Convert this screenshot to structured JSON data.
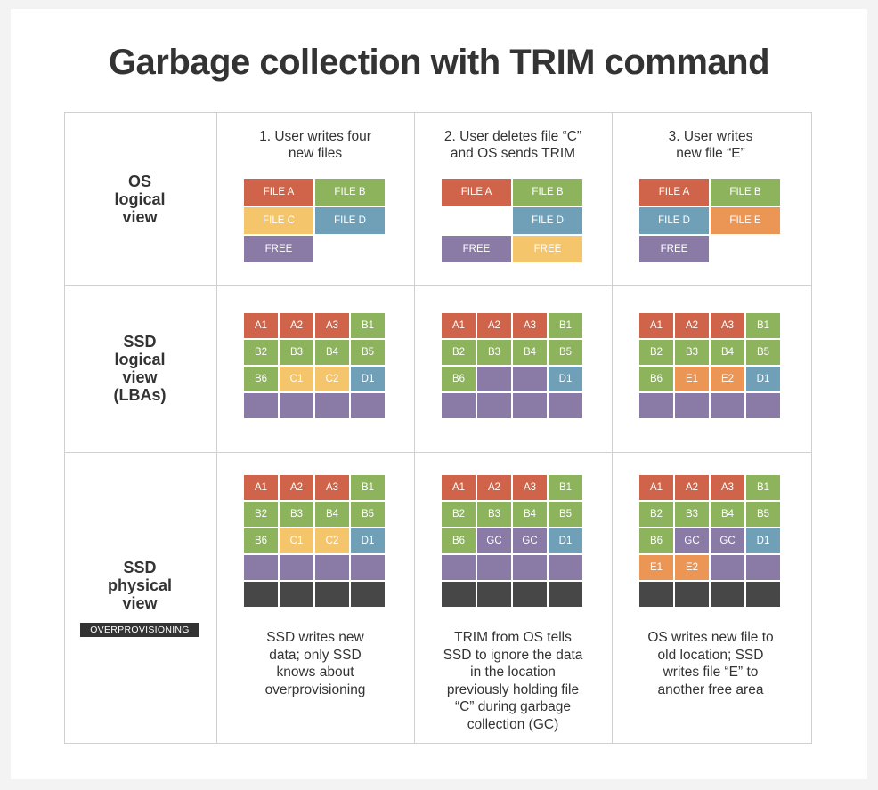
{
  "title": "Garbage collection with TRIM command",
  "colors": {
    "red": "#d0644a",
    "green": "#8db45d",
    "yellow": "#f4c56b",
    "blue": "#6fa0b8",
    "orange": "#ec9656",
    "purple": "#8a7aa6",
    "dark": "#474747"
  },
  "rows": [
    {
      "lines": [
        "OS",
        "logical",
        "view"
      ]
    },
    {
      "lines": [
        "SSD",
        "logical",
        "view",
        "(LBAs)"
      ]
    },
    {
      "lines": [
        "SSD",
        "physical",
        "view"
      ],
      "badge": "OVERPROVISIONING"
    }
  ],
  "columns": [
    {
      "lines": [
        "1. User writes four",
        "new files"
      ]
    },
    {
      "lines": [
        "2. User deletes file “C”",
        "and OS sends TRIM"
      ]
    },
    {
      "lines": [
        "3. User writes",
        "new file “E”"
      ]
    }
  ],
  "os_view": [
    [
      [
        {
          "t": "FILE A",
          "c": "red"
        },
        {
          "t": "FILE B",
          "c": "green"
        }
      ],
      [
        {
          "t": "FILE C",
          "c": "yellow"
        },
        {
          "t": "FILE D",
          "c": "blue"
        }
      ],
      [
        {
          "t": "FREE",
          "c": "purple"
        },
        null
      ]
    ],
    [
      [
        {
          "t": "FILE A",
          "c": "red"
        },
        {
          "t": "FILE B",
          "c": "green"
        }
      ],
      [
        null,
        {
          "t": "FILE D",
          "c": "blue"
        }
      ],
      [
        {
          "t": "FREE",
          "c": "purple"
        },
        {
          "t": "FREE",
          "c": "yellow"
        }
      ]
    ],
    [
      [
        {
          "t": "FILE A",
          "c": "red"
        },
        {
          "t": "FILE B",
          "c": "green"
        }
      ],
      [
        {
          "t": "FILE D",
          "c": "blue"
        },
        {
          "t": "FILE E",
          "c": "orange"
        }
      ],
      [
        {
          "t": "FREE",
          "c": "purple"
        },
        null
      ]
    ]
  ],
  "lba_view": [
    [
      [
        {
          "t": "A1",
          "c": "red"
        },
        {
          "t": "A2",
          "c": "red"
        },
        {
          "t": "A3",
          "c": "red"
        },
        {
          "t": "B1",
          "c": "green"
        }
      ],
      [
        {
          "t": "B2",
          "c": "green"
        },
        {
          "t": "B3",
          "c": "green"
        },
        {
          "t": "B4",
          "c": "green"
        },
        {
          "t": "B5",
          "c": "green"
        }
      ],
      [
        {
          "t": "B6",
          "c": "green"
        },
        {
          "t": "C1",
          "c": "yellow"
        },
        {
          "t": "C2",
          "c": "yellow"
        },
        {
          "t": "D1",
          "c": "blue"
        }
      ],
      [
        {
          "t": "",
          "c": "purple"
        },
        {
          "t": "",
          "c": "purple"
        },
        {
          "t": "",
          "c": "purple"
        },
        {
          "t": "",
          "c": "purple"
        }
      ]
    ],
    [
      [
        {
          "t": "A1",
          "c": "red"
        },
        {
          "t": "A2",
          "c": "red"
        },
        {
          "t": "A3",
          "c": "red"
        },
        {
          "t": "B1",
          "c": "green"
        }
      ],
      [
        {
          "t": "B2",
          "c": "green"
        },
        {
          "t": "B3",
          "c": "green"
        },
        {
          "t": "B4",
          "c": "green"
        },
        {
          "t": "B5",
          "c": "green"
        }
      ],
      [
        {
          "t": "B6",
          "c": "green"
        },
        {
          "t": "",
          "c": "purple"
        },
        {
          "t": "",
          "c": "purple"
        },
        {
          "t": "D1",
          "c": "blue"
        }
      ],
      [
        {
          "t": "",
          "c": "purple"
        },
        {
          "t": "",
          "c": "purple"
        },
        {
          "t": "",
          "c": "purple"
        },
        {
          "t": "",
          "c": "purple"
        }
      ]
    ],
    [
      [
        {
          "t": "A1",
          "c": "red"
        },
        {
          "t": "A2",
          "c": "red"
        },
        {
          "t": "A3",
          "c": "red"
        },
        {
          "t": "B1",
          "c": "green"
        }
      ],
      [
        {
          "t": "B2",
          "c": "green"
        },
        {
          "t": "B3",
          "c": "green"
        },
        {
          "t": "B4",
          "c": "green"
        },
        {
          "t": "B5",
          "c": "green"
        }
      ],
      [
        {
          "t": "B6",
          "c": "green"
        },
        {
          "t": "E1",
          "c": "orange"
        },
        {
          "t": "E2",
          "c": "orange"
        },
        {
          "t": "D1",
          "c": "blue"
        }
      ],
      [
        {
          "t": "",
          "c": "purple"
        },
        {
          "t": "",
          "c": "purple"
        },
        {
          "t": "",
          "c": "purple"
        },
        {
          "t": "",
          "c": "purple"
        }
      ]
    ]
  ],
  "physical_view": [
    [
      [
        {
          "t": "A1",
          "c": "red"
        },
        {
          "t": "A2",
          "c": "red"
        },
        {
          "t": "A3",
          "c": "red"
        },
        {
          "t": "B1",
          "c": "green"
        }
      ],
      [
        {
          "t": "B2",
          "c": "green"
        },
        {
          "t": "B3",
          "c": "green"
        },
        {
          "t": "B4",
          "c": "green"
        },
        {
          "t": "B5",
          "c": "green"
        }
      ],
      [
        {
          "t": "B6",
          "c": "green"
        },
        {
          "t": "C1",
          "c": "yellow"
        },
        {
          "t": "C2",
          "c": "yellow"
        },
        {
          "t": "D1",
          "c": "blue"
        }
      ],
      [
        {
          "t": "",
          "c": "purple"
        },
        {
          "t": "",
          "c": "purple"
        },
        {
          "t": "",
          "c": "purple"
        },
        {
          "t": "",
          "c": "purple"
        }
      ],
      [
        {
          "t": "",
          "c": "dark"
        },
        {
          "t": "",
          "c": "dark"
        },
        {
          "t": "",
          "c": "dark"
        },
        {
          "t": "",
          "c": "dark"
        }
      ]
    ],
    [
      [
        {
          "t": "A1",
          "c": "red"
        },
        {
          "t": "A2",
          "c": "red"
        },
        {
          "t": "A3",
          "c": "red"
        },
        {
          "t": "B1",
          "c": "green"
        }
      ],
      [
        {
          "t": "B2",
          "c": "green"
        },
        {
          "t": "B3",
          "c": "green"
        },
        {
          "t": "B4",
          "c": "green"
        },
        {
          "t": "B5",
          "c": "green"
        }
      ],
      [
        {
          "t": "B6",
          "c": "green"
        },
        {
          "t": "GC",
          "c": "purple"
        },
        {
          "t": "GC",
          "c": "purple"
        },
        {
          "t": "D1",
          "c": "blue"
        }
      ],
      [
        {
          "t": "",
          "c": "purple"
        },
        {
          "t": "",
          "c": "purple"
        },
        {
          "t": "",
          "c": "purple"
        },
        {
          "t": "",
          "c": "purple"
        }
      ],
      [
        {
          "t": "",
          "c": "dark"
        },
        {
          "t": "",
          "c": "dark"
        },
        {
          "t": "",
          "c": "dark"
        },
        {
          "t": "",
          "c": "dark"
        }
      ]
    ],
    [
      [
        {
          "t": "A1",
          "c": "red"
        },
        {
          "t": "A2",
          "c": "red"
        },
        {
          "t": "A3",
          "c": "red"
        },
        {
          "t": "B1",
          "c": "green"
        }
      ],
      [
        {
          "t": "B2",
          "c": "green"
        },
        {
          "t": "B3",
          "c": "green"
        },
        {
          "t": "B4",
          "c": "green"
        },
        {
          "t": "B5",
          "c": "green"
        }
      ],
      [
        {
          "t": "B6",
          "c": "green"
        },
        {
          "t": "GC",
          "c": "purple"
        },
        {
          "t": "GC",
          "c": "purple"
        },
        {
          "t": "D1",
          "c": "blue"
        }
      ],
      [
        {
          "t": "E1",
          "c": "orange"
        },
        {
          "t": "E2",
          "c": "orange"
        },
        {
          "t": "",
          "c": "purple"
        },
        {
          "t": "",
          "c": "purple"
        }
      ],
      [
        {
          "t": "",
          "c": "dark"
        },
        {
          "t": "",
          "c": "dark"
        },
        {
          "t": "",
          "c": "dark"
        },
        {
          "t": "",
          "c": "dark"
        }
      ]
    ]
  ],
  "captions": [
    {
      "lines": [
        "SSD writes new",
        "data; only SSD",
        "knows about",
        "overprovisioning"
      ]
    },
    {
      "lines": [
        "TRIM from OS tells",
        "SSD to ignore the data",
        "in the location",
        "previously holding file",
        "“C” during garbage",
        "collection (GC)"
      ]
    },
    {
      "lines": [
        "OS writes new file to",
        "old location; SSD",
        "writes file “E” to",
        "another free area"
      ]
    }
  ]
}
